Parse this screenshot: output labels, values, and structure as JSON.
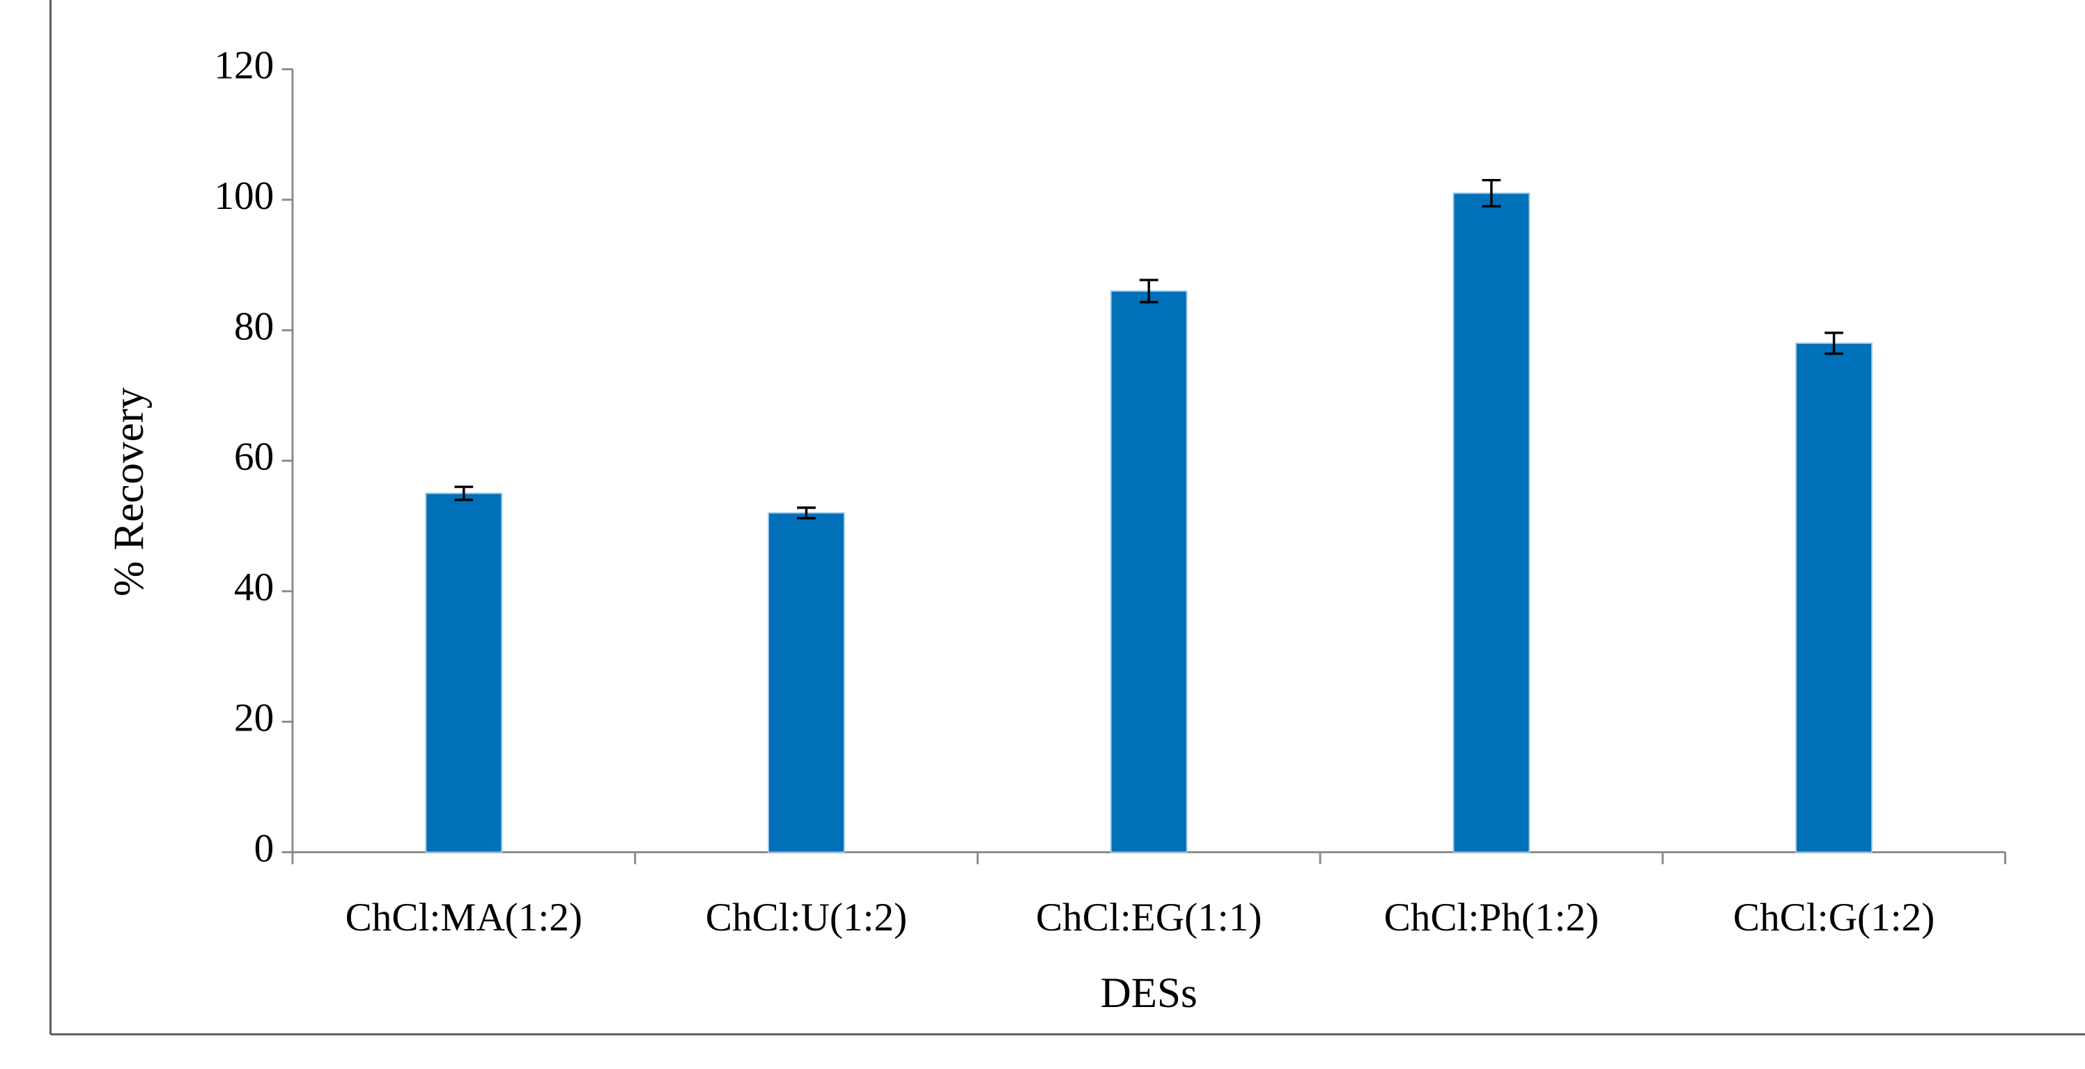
{
  "chart_data": {
    "type": "bar",
    "x_label": "DESs",
    "y_label": "% Recovery",
    "categories": [
      "ChCl:MA(1:2)",
      "ChCl:U(1:2)",
      "ChCl:EG(1:1)",
      "ChCl:Ph(1:2)",
      "ChCl:G(1:2)"
    ],
    "values": [
      55,
      52,
      86,
      101,
      78
    ],
    "errors": [
      1,
      0.8,
      1.7,
      2,
      1.6
    ],
    "color": "#0070b8",
    "ylim": [
      0,
      120
    ],
    "yticks": [
      0,
      20,
      40,
      60,
      80,
      100,
      120
    ],
    "grid": false
  }
}
